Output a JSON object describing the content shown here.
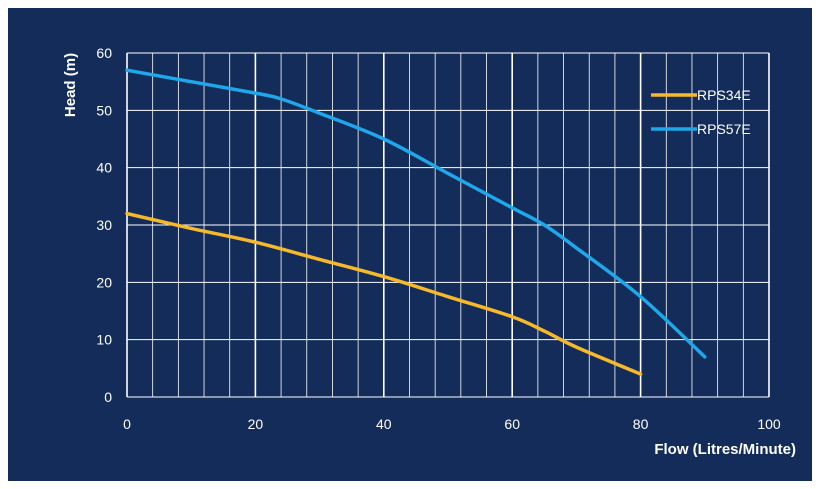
{
  "chart_data": {
    "type": "line",
    "title": "",
    "xlabel": "Flow (Litres/Minute)",
    "ylabel": "Head (m)",
    "xlim": [
      0,
      100
    ],
    "ylim": [
      0,
      60
    ],
    "x_ticks": [
      0,
      20,
      40,
      60,
      80,
      100
    ],
    "y_ticks": [
      0,
      10,
      20,
      30,
      40,
      50,
      60
    ],
    "grid": true,
    "legend_position": "top-right",
    "background_color": "#132c59",
    "series": [
      {
        "name": "RPS34E",
        "color": "#f7b92a",
        "x": [
          0,
          10,
          20,
          30,
          40,
          50,
          60,
          65,
          70,
          80
        ],
        "y": [
          32,
          29.4,
          27,
          24,
          21,
          17.5,
          14,
          11.5,
          8.7,
          4
        ]
      },
      {
        "name": "RPS57E",
        "color": "#1ea7ea",
        "x": [
          0,
          10,
          20,
          24,
          30,
          40,
          50,
          60,
          65,
          70,
          80,
          90
        ],
        "y": [
          57,
          55,
          53,
          52,
          49.5,
          45,
          39,
          33,
          30,
          26,
          17.5,
          7
        ]
      }
    ]
  }
}
